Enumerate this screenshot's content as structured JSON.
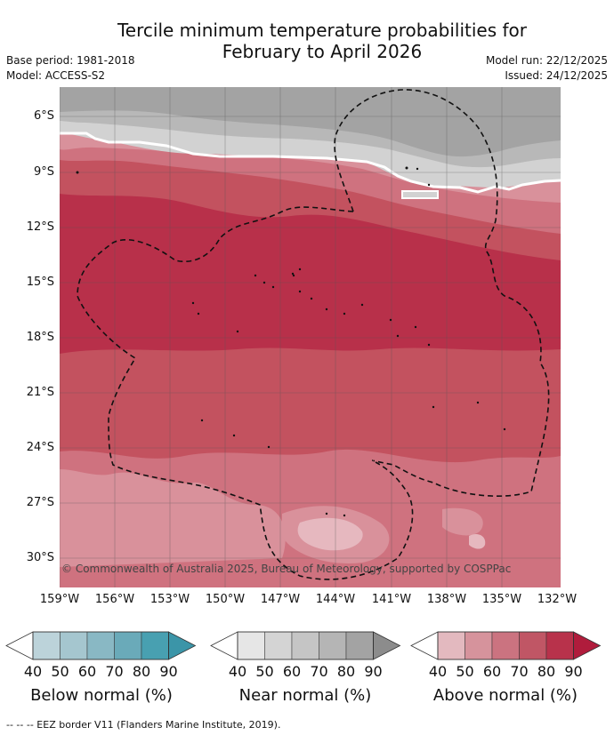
{
  "header": {
    "title_line1": "Tercile minimum temperature probabilities for",
    "title_line2": "February to April 2026",
    "base_period": "Base period: 1981-2018",
    "model": "Model: ACCESS-S2",
    "model_run": "Model run: 22/12/2025",
    "issued": "Issued: 24/12/2025"
  },
  "map": {
    "latitude_labels": [
      "6°S",
      "9°S",
      "12°S",
      "15°S",
      "18°S",
      "21°S",
      "24°S",
      "27°S",
      "30°S"
    ],
    "longitude_labels": [
      "159°W",
      "156°W",
      "153°W",
      "150°W",
      "147°W",
      "144°W",
      "141°W",
      "138°W",
      "135°W",
      "132°W"
    ],
    "copyright": "© Commonwealth of Australia 2025, Bureau of Meteorology, supported by COSPPac",
    "colors": {
      "near_normal_dark": "#a3a3a3",
      "near_normal_mid": "#b8b8b8",
      "near_normal_light": "#d2d2d2",
      "above_40": "#e6b8bf",
      "above_50": "#d9919b",
      "above_60": "#cf727f",
      "above_70": "#c3525f",
      "above_80": "#b8304a",
      "above_90": "#b01c3c"
    }
  },
  "legend": {
    "below": {
      "title": "Below normal (%)",
      "ticks": [
        "40",
        "50",
        "60",
        "70",
        "80",
        "90"
      ],
      "colors": [
        "#ffffff",
        "#bcd3da",
        "#a5c6cf",
        "#89b8c4",
        "#6aaab9",
        "#48a0b1",
        "#3b95a8"
      ]
    },
    "near": {
      "title": "Near normal (%)",
      "ticks": [
        "40",
        "50",
        "60",
        "70",
        "80",
        "90"
      ],
      "colors": [
        "#ffffff",
        "#e6e6e6",
        "#d4d4d4",
        "#c5c5c5",
        "#b5b5b5",
        "#a3a3a3",
        "#8c8c8c"
      ]
    },
    "above": {
      "title": "Above normal (%)",
      "ticks": [
        "40",
        "50",
        "60",
        "70",
        "80",
        "90"
      ],
      "colors": [
        "#ffffff",
        "#e3b9bf",
        "#d6939c",
        "#cb7380",
        "#c05665",
        "#b8324b",
        "#b01c3c"
      ]
    }
  },
  "footnote": "--  --  -- EEZ border V11 (Flanders Marine Institute, 2019)."
}
